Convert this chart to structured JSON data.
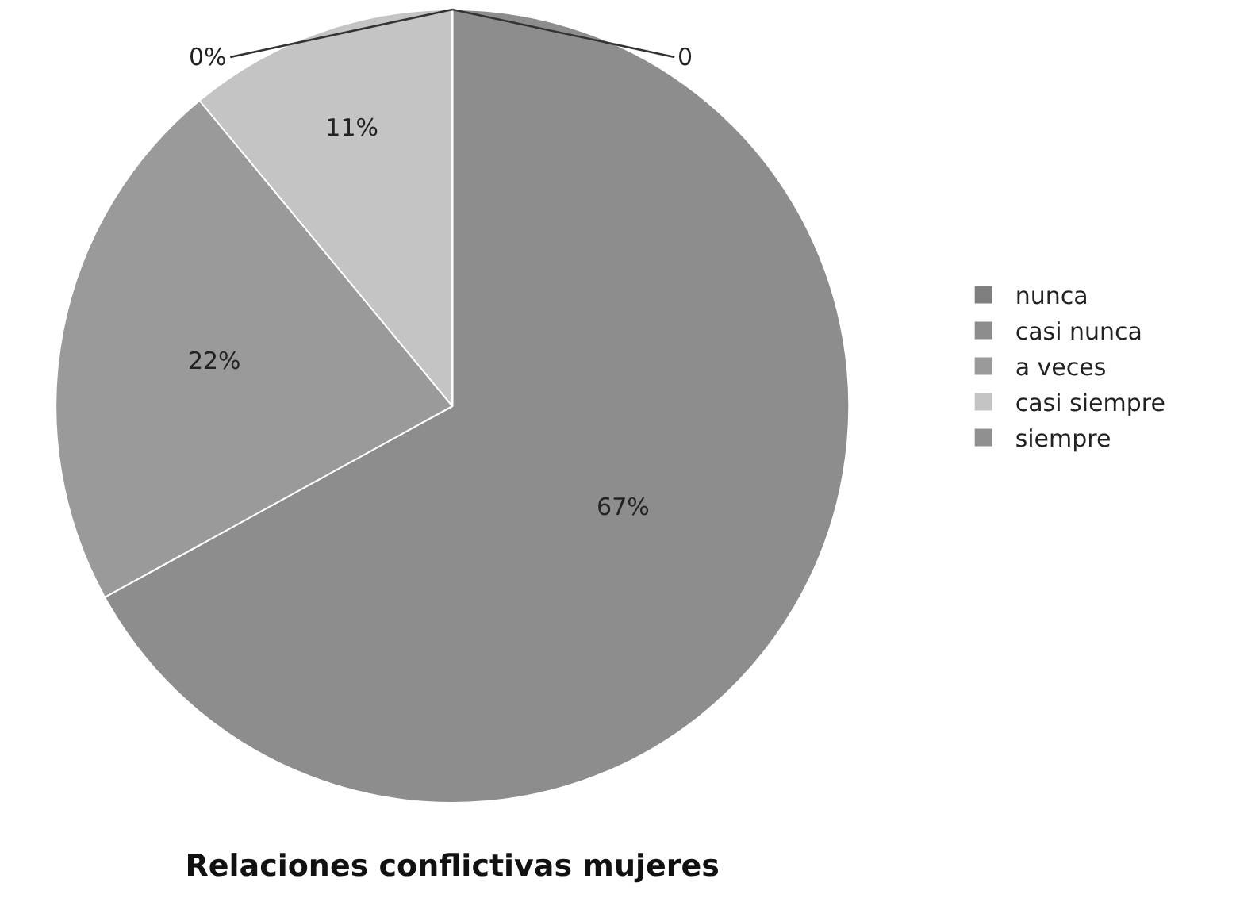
{
  "chart_data": {
    "type": "pie",
    "title": "Relaciones conflictivas mujeres",
    "categories": [
      "nunca",
      "casi nunca",
      "a veces",
      "casi siempre",
      "siempre"
    ],
    "values": [
      0,
      67,
      22,
      11,
      0
    ],
    "colors": [
      "#7f7f7f",
      "#8d8d8d",
      "#9a9a9a",
      "#c4c4c4",
      "#909090"
    ],
    "value_labels": [
      "0",
      "67%",
      "22%",
      "11%",
      "0%"
    ],
    "legend": "right"
  }
}
